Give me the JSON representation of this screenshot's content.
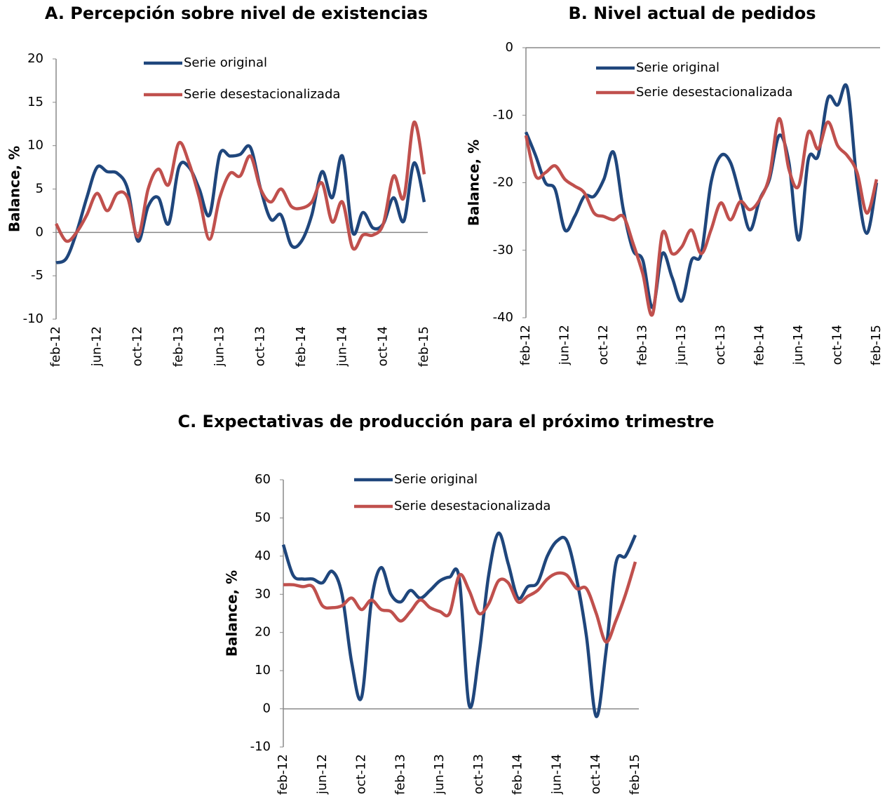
{
  "chart_data": [
    {
      "type": "line",
      "title": "A.  Percepción sobre nivel de existencias",
      "y_label": "Balance, %",
      "categories": [
        "feb-12",
        null,
        null,
        null,
        "jun-12",
        null,
        null,
        null,
        "oct-12",
        null,
        null,
        null,
        "feb-13",
        null,
        null,
        null,
        "jun-13",
        null,
        null,
        null,
        "oct-13",
        null,
        null,
        null,
        "feb-14",
        null,
        null,
        null,
        "jun-14",
        null,
        null,
        null,
        "oct-14",
        null,
        null,
        null,
        "feb-15"
      ],
      "series": [
        {
          "name": "Serie original",
          "color": "#1f467c",
          "values": [
            -3.5,
            -3,
            0,
            4,
            7.5,
            7,
            6.8,
            5,
            -1,
            3,
            4,
            1,
            7.5,
            7.5,
            5,
            2,
            9,
            8.8,
            9,
            9.8,
            5,
            1.5,
            2,
            -1.5,
            -1,
            2,
            7,
            4,
            8.8,
            0,
            2.3,
            0.5,
            1,
            4,
            1.3,
            8,
            3.5
          ]
        },
        {
          "name": "Serie desestacionalizada",
          "color": "#c0504d",
          "values": [
            1,
            -1,
            0,
            2,
            4.5,
            2.5,
            4.5,
            4,
            -0.5,
            5,
            7.3,
            5.5,
            10.3,
            8,
            4,
            -0.8,
            4,
            6.8,
            6.5,
            8.8,
            5,
            3.5,
            5,
            3,
            2.8,
            3.5,
            5.7,
            1.2,
            3.5,
            -1.8,
            -0.3,
            -0.3,
            1,
            6.5,
            4,
            12.7,
            6.7
          ]
        }
      ],
      "ylim": [
        -10,
        20
      ],
      "yticks": [
        -10,
        -5,
        0,
        5,
        10,
        15,
        20
      ],
      "grid": false
    },
    {
      "type": "line",
      "title": "B.  Nivel actual de pedidos",
      "y_label": "Balance, %",
      "categories": [
        "feb-12",
        null,
        null,
        null,
        "jun-12",
        null,
        null,
        null,
        "oct-12",
        null,
        null,
        null,
        "feb-13",
        null,
        null,
        null,
        "jun-13",
        null,
        null,
        null,
        "oct-13",
        null,
        null,
        null,
        "feb-14",
        null,
        null,
        null,
        "jun-14",
        null,
        null,
        null,
        "oct-14",
        null,
        null,
        null,
        "feb-15"
      ],
      "series": [
        {
          "name": "Serie original",
          "color": "#1f467c",
          "values": [
            -12.5,
            -16,
            -20,
            -21,
            -27,
            -25,
            -22,
            -22,
            -19.5,
            -15.5,
            -24,
            -30,
            -31.5,
            -38.5,
            -30.5,
            -34,
            -37.5,
            -31.5,
            -30.5,
            -20,
            -16,
            -17,
            -22,
            -27,
            -22.5,
            -19.5,
            -13,
            -17,
            -28.5,
            -16.5,
            -16,
            -7.5,
            -8.5,
            -6,
            -20,
            -27.5,
            -20
          ]
        },
        {
          "name": "Serie desestacionalizada",
          "color": "#c0504d",
          "values": [
            -13,
            -19,
            -18.5,
            -17.5,
            -19.5,
            -20.5,
            -21.5,
            -24.5,
            -25,
            -25.5,
            -25,
            -29,
            -33.5,
            -39.5,
            -27.5,
            -30.5,
            -29.5,
            -27,
            -30.5,
            -27,
            -23,
            -25.5,
            -22.8,
            -24,
            -22.5,
            -19,
            -10.5,
            -18,
            -20.5,
            -12.5,
            -15,
            -11,
            -14.5,
            -16,
            -18.5,
            -24.5,
            -19.5
          ]
        }
      ],
      "ylim": [
        -40,
        0
      ],
      "yticks": [
        -40,
        -30,
        -20,
        -10,
        0
      ],
      "grid": false
    },
    {
      "type": "line",
      "title": "C.  Expectativas de producción para el próximo trimestre",
      "y_label": "Balance, %",
      "categories": [
        "feb-12",
        null,
        null,
        null,
        "jun-12",
        null,
        null,
        null,
        "oct-12",
        null,
        null,
        null,
        "feb-13",
        null,
        null,
        null,
        "jun-13",
        null,
        null,
        null,
        "oct-13",
        null,
        null,
        null,
        "feb-14",
        null,
        null,
        null,
        "jun-14",
        null,
        null,
        null,
        "oct-14",
        null,
        null,
        null,
        "feb-15"
      ],
      "series": [
        {
          "name": "Serie original",
          "color": "#1f467c",
          "values": [
            43,
            35,
            34,
            34,
            33,
            36,
            30,
            12,
            3,
            28,
            37,
            30,
            28,
            31,
            29,
            31,
            33.5,
            34.5,
            34,
            1,
            14,
            35,
            46,
            38,
            29,
            32,
            33,
            40,
            44,
            44,
            34,
            19,
            -2,
            15,
            38,
            40,
            45.5
          ]
        },
        {
          "name": "Serie desestacionalizada",
          "color": "#c0504d",
          "values": [
            32.5,
            32.5,
            32,
            32,
            27,
            26.5,
            27,
            29,
            26,
            28.5,
            26,
            25.5,
            23,
            25.5,
            28.5,
            26.5,
            25.5,
            25,
            35,
            31,
            25,
            27.5,
            33.5,
            33,
            28,
            29.5,
            31,
            34,
            35.5,
            35,
            31.5,
            31.5,
            25,
            17.5,
            23,
            30,
            38.5
          ]
        }
      ],
      "ylim": [
        -10,
        60
      ],
      "yticks": [
        -10,
        0,
        10,
        20,
        30,
        40,
        50,
        60
      ],
      "grid": false
    }
  ]
}
